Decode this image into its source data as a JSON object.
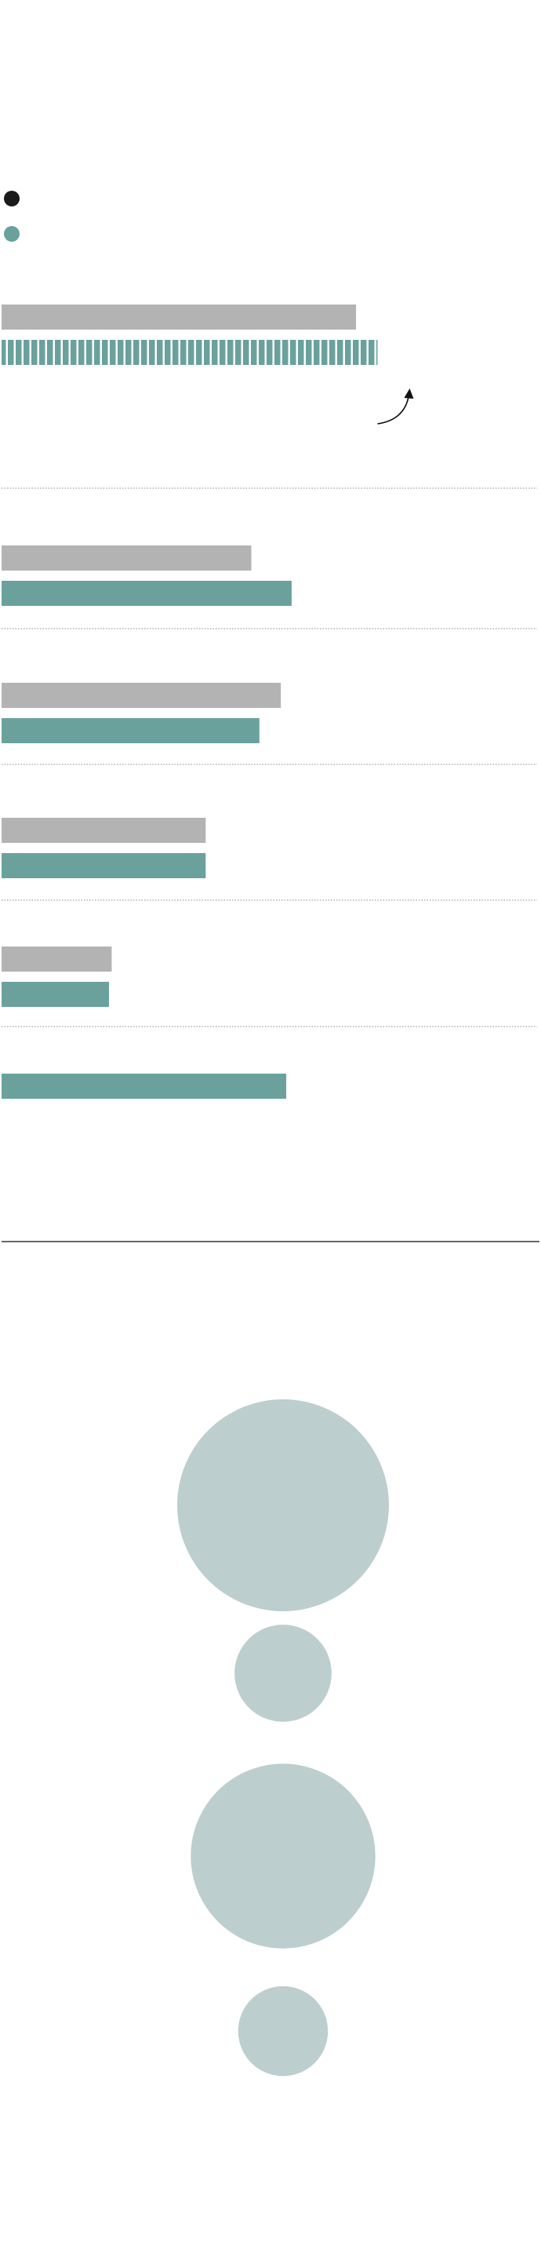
{
  "colors": {
    "series_a": "#b3b3b3",
    "series_b": "#6aa19d",
    "legend_a": "#1a1a1a",
    "legend_b": "#6aa19d",
    "divider": "#888888",
    "circle": "#bccecd",
    "rule": "#333333"
  },
  "legend": [
    {
      "name": "",
      "color_key": "legend_a"
    },
    {
      "name": "",
      "color_key": "legend_b"
    }
  ],
  "chart_data": [
    {
      "type": "bar",
      "orientation": "horizontal",
      "title": "",
      "xlabel": "",
      "ylabel": "",
      "xlim": [
        0,
        100
      ],
      "grid": false,
      "categories": [
        "",
        "",
        "",
        "",
        "",
        ""
      ],
      "series": [
        {
          "values": [
            66,
            46.5,
            52,
            38,
            20.5,
            null
          ]
        },
        {
          "values": [
            70,
            54,
            48,
            38,
            20,
            53
          ]
        }
      ],
      "highlight": {
        "category_index": 0,
        "series_index": 1,
        "style": "striped",
        "annotation": "curved-arrow"
      }
    },
    {
      "type": "bubble",
      "title": "",
      "labels": [
        "",
        "",
        "",
        ""
      ],
      "values": [
        100,
        21,
        76,
        18
      ]
    }
  ]
}
